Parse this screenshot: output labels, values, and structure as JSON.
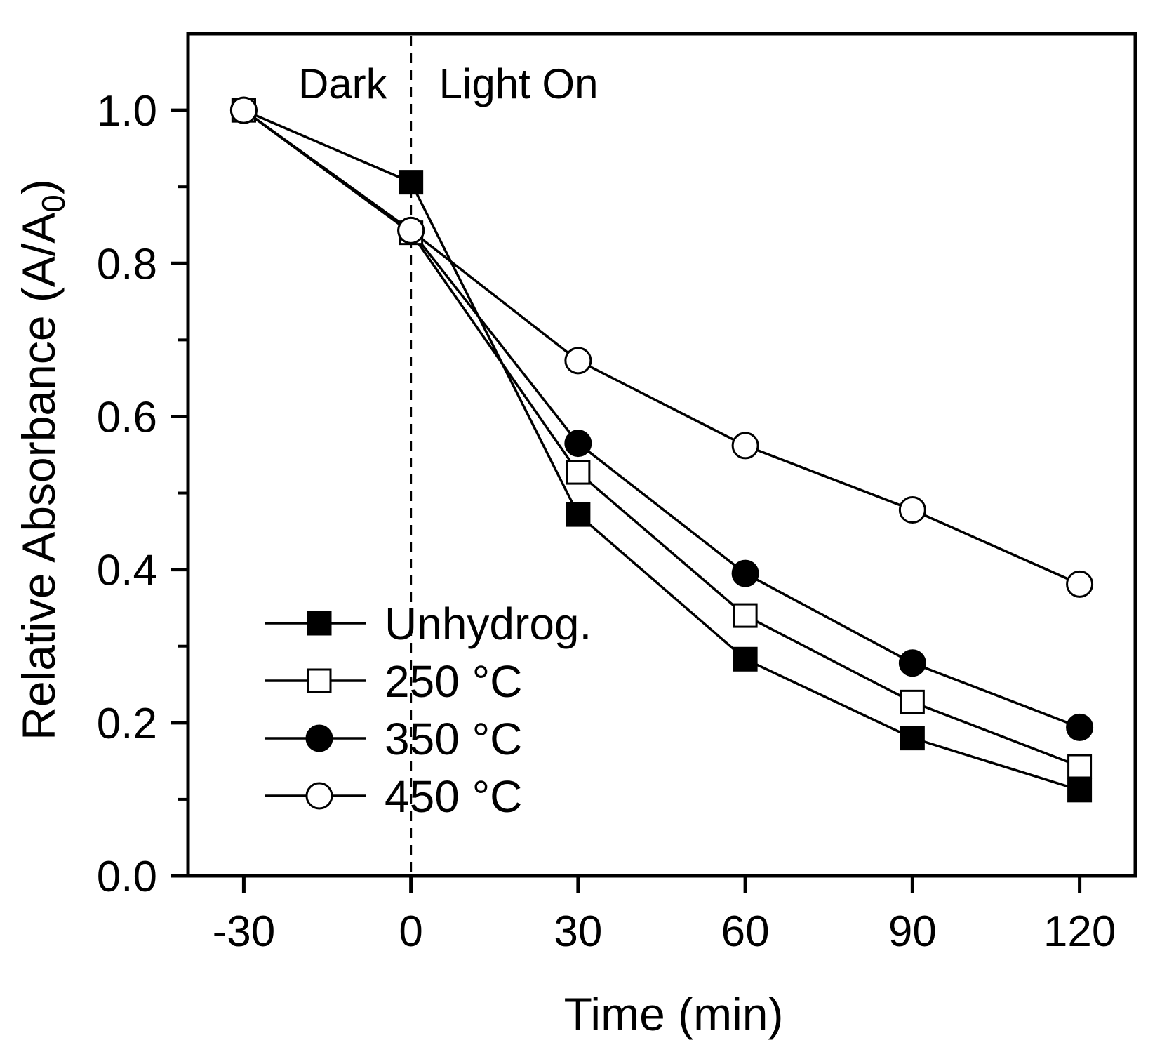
{
  "chart_data": {
    "type": "line",
    "title": "",
    "xlabel": "Time (min)",
    "ylabel": "Relative Absorbance (A/A",
    "ylabel_subscript": "0",
    "ylabel_close": ")",
    "xlim": [
      -40,
      130
    ],
    "ylim": [
      0,
      1.1
    ],
    "xticks": [
      -30,
      0,
      30,
      60,
      90,
      120
    ],
    "xtick_labels": [
      "-30",
      "0",
      "30",
      "60",
      "90",
      "120"
    ],
    "yticks": [
      0,
      0.2,
      0.4,
      0.6,
      0.8,
      1.0
    ],
    "ytick_labels": [
      "0.0",
      "0.2",
      "0.4",
      "0.6",
      "0.8",
      "1.0"
    ],
    "yminor_ticks": [
      0.1,
      0.3,
      0.5,
      0.7,
      0.9
    ],
    "annotations": {
      "dark": "Dark",
      "light_on": "Light On",
      "divider_x": 0
    },
    "legend_position": "bottom-left",
    "x": [
      -30,
      0,
      30,
      60,
      90,
      120
    ],
    "series": [
      {
        "name": "Unhydrog.",
        "marker": "square",
        "filled": true,
        "values": [
          1.0,
          0.906,
          0.472,
          0.283,
          0.18,
          0.112
        ]
      },
      {
        "name": "250 °C",
        "marker": "square",
        "filled": false,
        "values": [
          1.0,
          0.84,
          0.527,
          0.34,
          0.227,
          0.143
        ]
      },
      {
        "name": "350 °C",
        "marker": "circle",
        "filled": true,
        "values": [
          1.0,
          0.843,
          0.565,
          0.395,
          0.278,
          0.194
        ]
      },
      {
        "name": "450 °C",
        "marker": "circle",
        "filled": false,
        "values": [
          1.0,
          0.843,
          0.673,
          0.562,
          0.478,
          0.381
        ]
      }
    ]
  }
}
